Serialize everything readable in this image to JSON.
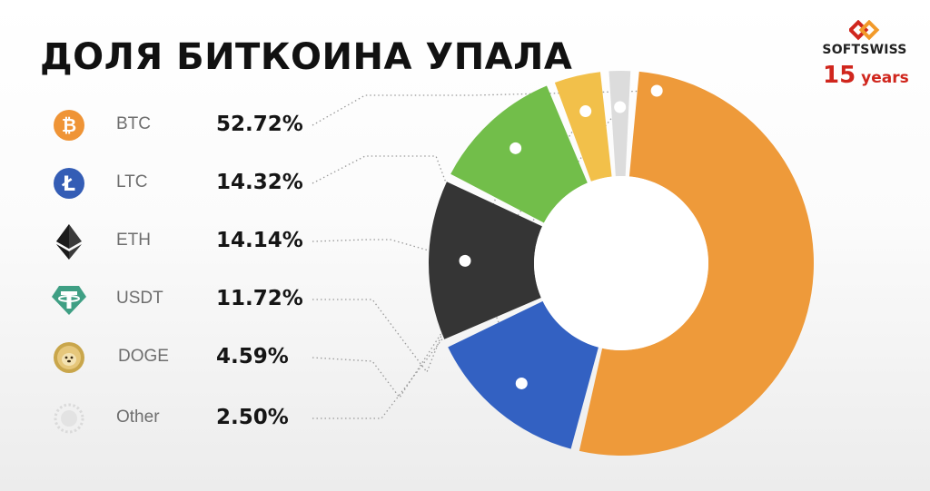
{
  "title": "ДОЛЯ БИТКОИНА УПАЛА",
  "brand": {
    "name": "SOFTSWISS",
    "years_number": "15",
    "years_word": "years",
    "accent": "#d0261d"
  },
  "chart_data": {
    "type": "pie",
    "donut": true,
    "legend_placement": "left",
    "slices": [
      {
        "label": "BTC",
        "value": 52.72,
        "value_label": "52.72%",
        "color": "#ee9a3a",
        "icon": "bitcoin-icon"
      },
      {
        "label": "LTC",
        "value": 14.32,
        "value_label": "14.32%",
        "color": "#3361c2",
        "icon": "litecoin-icon"
      },
      {
        "label": "ETH",
        "value": 14.14,
        "value_label": "14.14%",
        "color": "#353535",
        "icon": "ethereum-icon"
      },
      {
        "label": "USDT",
        "value": 11.72,
        "value_label": "11.72%",
        "color": "#72be4a",
        "icon": "tether-icon"
      },
      {
        "label": "DOGE",
        "value": 4.59,
        "value_label": "4.59%",
        "color": "#f2c04a",
        "icon": "dogecoin-icon"
      },
      {
        "label": "Other",
        "value": 2.5,
        "value_label": "2.50%",
        "color": "#dcdcdc",
        "icon": "other-coins-icon"
      }
    ]
  }
}
